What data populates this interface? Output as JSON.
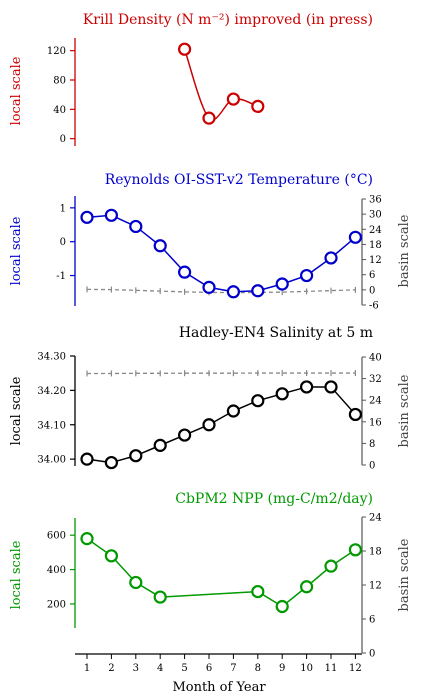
{
  "x_axis": {
    "label": "Month of Year",
    "ticks": [
      1,
      2,
      3,
      4,
      5,
      6,
      7,
      8,
      9,
      10,
      11,
      12
    ]
  },
  "chart_data": [
    {
      "type": "line",
      "title": "Krill Density (N m⁻²) improved (in press)",
      "color": "#cc0000",
      "ylabel_left": "local scale",
      "ylim_left": [
        -10,
        140
      ],
      "yticks_left": [
        0,
        40,
        80,
        120
      ],
      "ytick_labels_left": [
        "0",
        "40",
        "80",
        "120"
      ],
      "x": [
        5,
        6,
        7,
        8
      ],
      "values": [
        122,
        28,
        54,
        44
      ]
    },
    {
      "type": "line",
      "title": "Reynolds OI-SST-v2 Temperature (°C)",
      "color": "#0000cc",
      "ylabel_left": "local scale",
      "ylim_left": [
        -1.9,
        1.35
      ],
      "yticks_left": [
        -1,
        0,
        1
      ],
      "ytick_labels_left": [
        "-1",
        "0",
        "1"
      ],
      "x": [
        1,
        2,
        3,
        4,
        5,
        6,
        7,
        8,
        9,
        10,
        11,
        12
      ],
      "values": [
        0.72,
        0.78,
        0.45,
        -0.12,
        -0.9,
        -1.35,
        -1.48,
        -1.45,
        -1.25,
        -1.0,
        -0.48,
        0.13
      ],
      "ylabel_right": "basin scale",
      "ylim_right": [
        -6,
        36
      ],
      "yticks_right": [
        -6,
        0,
        6,
        12,
        18,
        24,
        30,
        36
      ],
      "ytick_labels_right": [
        "-6",
        "0",
        "6",
        "12",
        "18",
        "24",
        "30",
        "36"
      ],
      "basin_values": [
        0.2,
        0.1,
        -0.2,
        -0.5,
        -0.8,
        -1.0,
        -1.1,
        -1.05,
        -0.9,
        -0.6,
        -0.3,
        0.0
      ]
    },
    {
      "type": "line",
      "title": "Hadley-EN4 Salinity at 5 m",
      "color": "#000000",
      "ylabel_left": "local scale",
      "ylim_left": [
        33.98,
        34.3
      ],
      "yticks_left": [
        34.0,
        34.1,
        34.2,
        34.3
      ],
      "ytick_labels_left": [
        "34.00",
        "34.10",
        "34.20",
        "34.30"
      ],
      "x": [
        1,
        2,
        3,
        4,
        5,
        6,
        7,
        8,
        9,
        10,
        11,
        12
      ],
      "values": [
        34.0,
        33.99,
        34.01,
        34.04,
        34.07,
        34.1,
        34.14,
        34.17,
        34.19,
        34.21,
        34.21,
        34.13
      ],
      "ylabel_right": "basin scale",
      "ylim_right": [
        0,
        40
      ],
      "yticks_right": [
        0,
        8,
        16,
        24,
        32,
        40
      ],
      "ytick_labels_right": [
        "0",
        "8",
        "16",
        "24",
        "32",
        "40"
      ],
      "basin_values": [
        33.9,
        33.9,
        33.95,
        33.95,
        34.0,
        34.0,
        34.0,
        34.05,
        34.05,
        34.05,
        34.05,
        34.05
      ]
    },
    {
      "type": "line",
      "title": "CbPM2 NPP (mg-C/m2/day)",
      "color": "#009900",
      "ylabel_left": "local scale",
      "ylim_left": [
        60,
        700
      ],
      "yticks_left": [
        200,
        400,
        600
      ],
      "ytick_labels_left": [
        "200",
        "400",
        "600"
      ],
      "x": [
        1,
        2,
        3,
        4,
        8,
        9,
        10,
        11,
        12
      ],
      "values": [
        580,
        480,
        325,
        240,
        272,
        185,
        300,
        420,
        515
      ],
      "ylabel_right": "basin scale",
      "ylim_right": [
        0,
        24
      ],
      "yticks_right": [
        0,
        6,
        12,
        18,
        24
      ],
      "ytick_labels_right": [
        "0",
        "6",
        "12",
        "18",
        "24"
      ]
    }
  ]
}
